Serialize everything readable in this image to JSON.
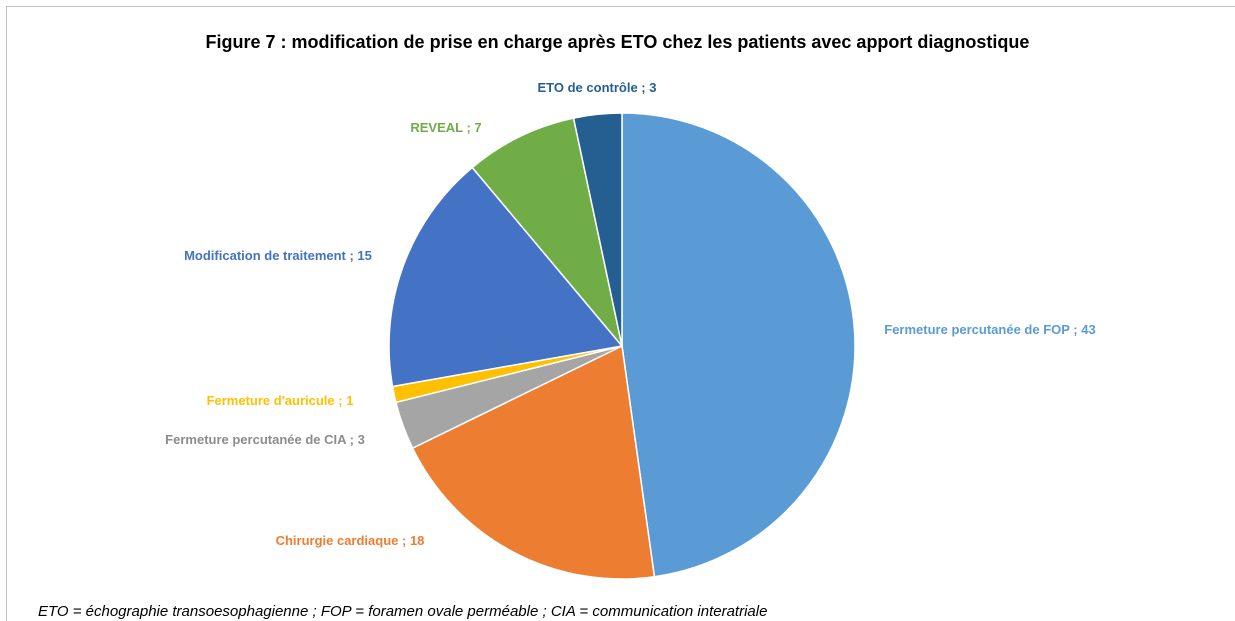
{
  "chart_data": {
    "type": "pie",
    "title": "Figure 7 : modification de prise en charge après ETO chez les patients avec apport diagnostique",
    "values": [
      43,
      18,
      3,
      1,
      15,
      7,
      3
    ],
    "value_labels": [
      "Fermeture percutanée de FOP ; 43",
      "Chirurgie cardiaque ; 18",
      "Fermeture percutanée de CIA ; 3",
      "Fermeture d'auricule ; 1",
      "Modification de traitement ; 15",
      "REVEAL ; 7",
      "ETO de contrôle ; 3"
    ],
    "colors": [
      "#5b9bd5",
      "#ed7d31",
      "#a5a5a5",
      "#ffc000",
      "#4472c4",
      "#70ad47",
      "#255e91"
    ],
    "note": "ETO = échographie transoesophagienne ; FOP = foramen ovale perméable ; CIA = communication interatriale"
  }
}
